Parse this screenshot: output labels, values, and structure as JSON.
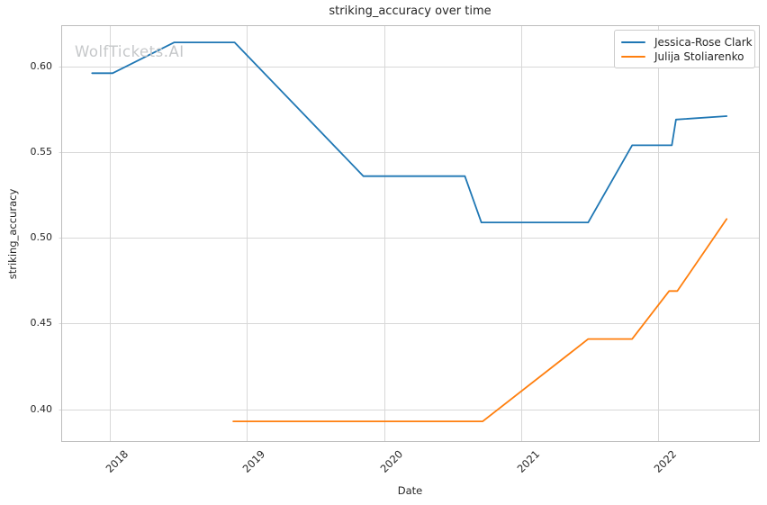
{
  "watermark": "WolfTickets.AI",
  "chart_data": {
    "type": "line",
    "title": "striking_accuracy over time",
    "xlabel": "Date",
    "ylabel": "striking_accuracy",
    "xlim": [
      2017.645,
      2022.735
    ],
    "ylim": [
      0.3815,
      0.624
    ],
    "grid": true,
    "legend_position": "upper-right",
    "xticks": [
      {
        "value": 2018,
        "label": "2018"
      },
      {
        "value": 2019,
        "label": "2019"
      },
      {
        "value": 2020,
        "label": "2020"
      },
      {
        "value": 2021,
        "label": "2021"
      },
      {
        "value": 2022,
        "label": "2022"
      }
    ],
    "yticks": [
      {
        "value": 0.4,
        "label": "0.40"
      },
      {
        "value": 0.45,
        "label": "0.45"
      },
      {
        "value": 0.5,
        "label": "0.50"
      },
      {
        "value": 0.55,
        "label": "0.55"
      },
      {
        "value": 0.6,
        "label": "0.60"
      }
    ],
    "series": [
      {
        "name": "Jessica-Rose Clark",
        "color": "#1f77b4",
        "points": [
          {
            "date": "2017-11",
            "x": 2017.87,
            "y": 0.596
          },
          {
            "date": "2018-01",
            "x": 2018.02,
            "y": 0.596
          },
          {
            "date": "2018-06",
            "x": 2018.47,
            "y": 0.614
          },
          {
            "date": "2018-12",
            "x": 2018.91,
            "y": 0.614
          },
          {
            "date": "2019-11",
            "x": 2019.85,
            "y": 0.536
          },
          {
            "date": "2020-08",
            "x": 2020.59,
            "y": 0.536
          },
          {
            "date": "2020-09",
            "x": 2020.71,
            "y": 0.509
          },
          {
            "date": "2021-06",
            "x": 2021.49,
            "y": 0.509
          },
          {
            "date": "2021-10",
            "x": 2021.81,
            "y": 0.554
          },
          {
            "date": "2022-02",
            "x": 2022.1,
            "y": 0.554
          },
          {
            "date": "2022-02",
            "x": 2022.13,
            "y": 0.569
          },
          {
            "date": "2022-07",
            "x": 2022.5,
            "y": 0.571
          }
        ]
      },
      {
        "name": "Julija Stoliarenko",
        "color": "#ff7f0e",
        "points": [
          {
            "date": "2018-11",
            "x": 2018.9,
            "y": 0.393
          },
          {
            "date": "2020-09",
            "x": 2020.72,
            "y": 0.393
          },
          {
            "date": "2021-06",
            "x": 2021.49,
            "y": 0.441
          },
          {
            "date": "2021-10",
            "x": 2021.81,
            "y": 0.441
          },
          {
            "date": "2022-01",
            "x": 2022.08,
            "y": 0.469
          },
          {
            "date": "2022-02",
            "x": 2022.14,
            "y": 0.469
          },
          {
            "date": "2022-07",
            "x": 2022.5,
            "y": 0.511
          }
        ]
      }
    ]
  },
  "colors": {
    "background": "#ffffff",
    "grid": "#d8d8d8",
    "spine": "#bdbdbd",
    "text": "#262626",
    "watermark": "#c6c8ca",
    "legend_border": "#cccccc",
    "series_blue": "#1f77b4",
    "series_orange": "#ff7f0e"
  }
}
